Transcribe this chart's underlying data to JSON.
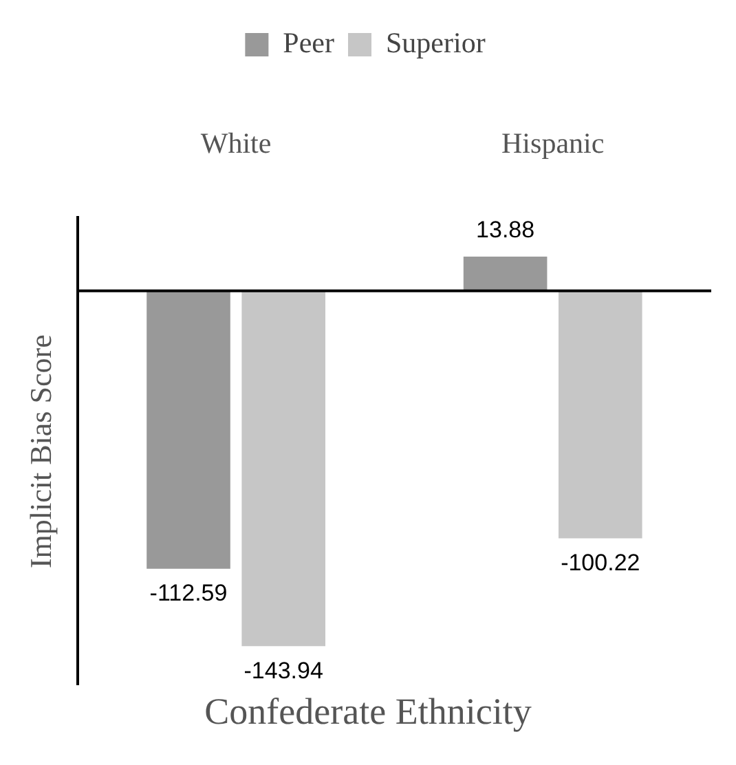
{
  "chart_data": {
    "type": "bar",
    "xlabel": "Confederate Ethnicity",
    "ylabel": "Implicit Bias Score",
    "categories": [
      "White",
      "Hispanic"
    ],
    "series": [
      {
        "name": "Peer",
        "color": "#999999",
        "values": [
          -112.59,
          13.88
        ]
      },
      {
        "name": "Superior",
        "color": "#c6c6c6",
        "values": [
          -143.94,
          -100.22
        ]
      }
    ],
    "data_labels": true,
    "legend": "top",
    "grid": false
  }
}
